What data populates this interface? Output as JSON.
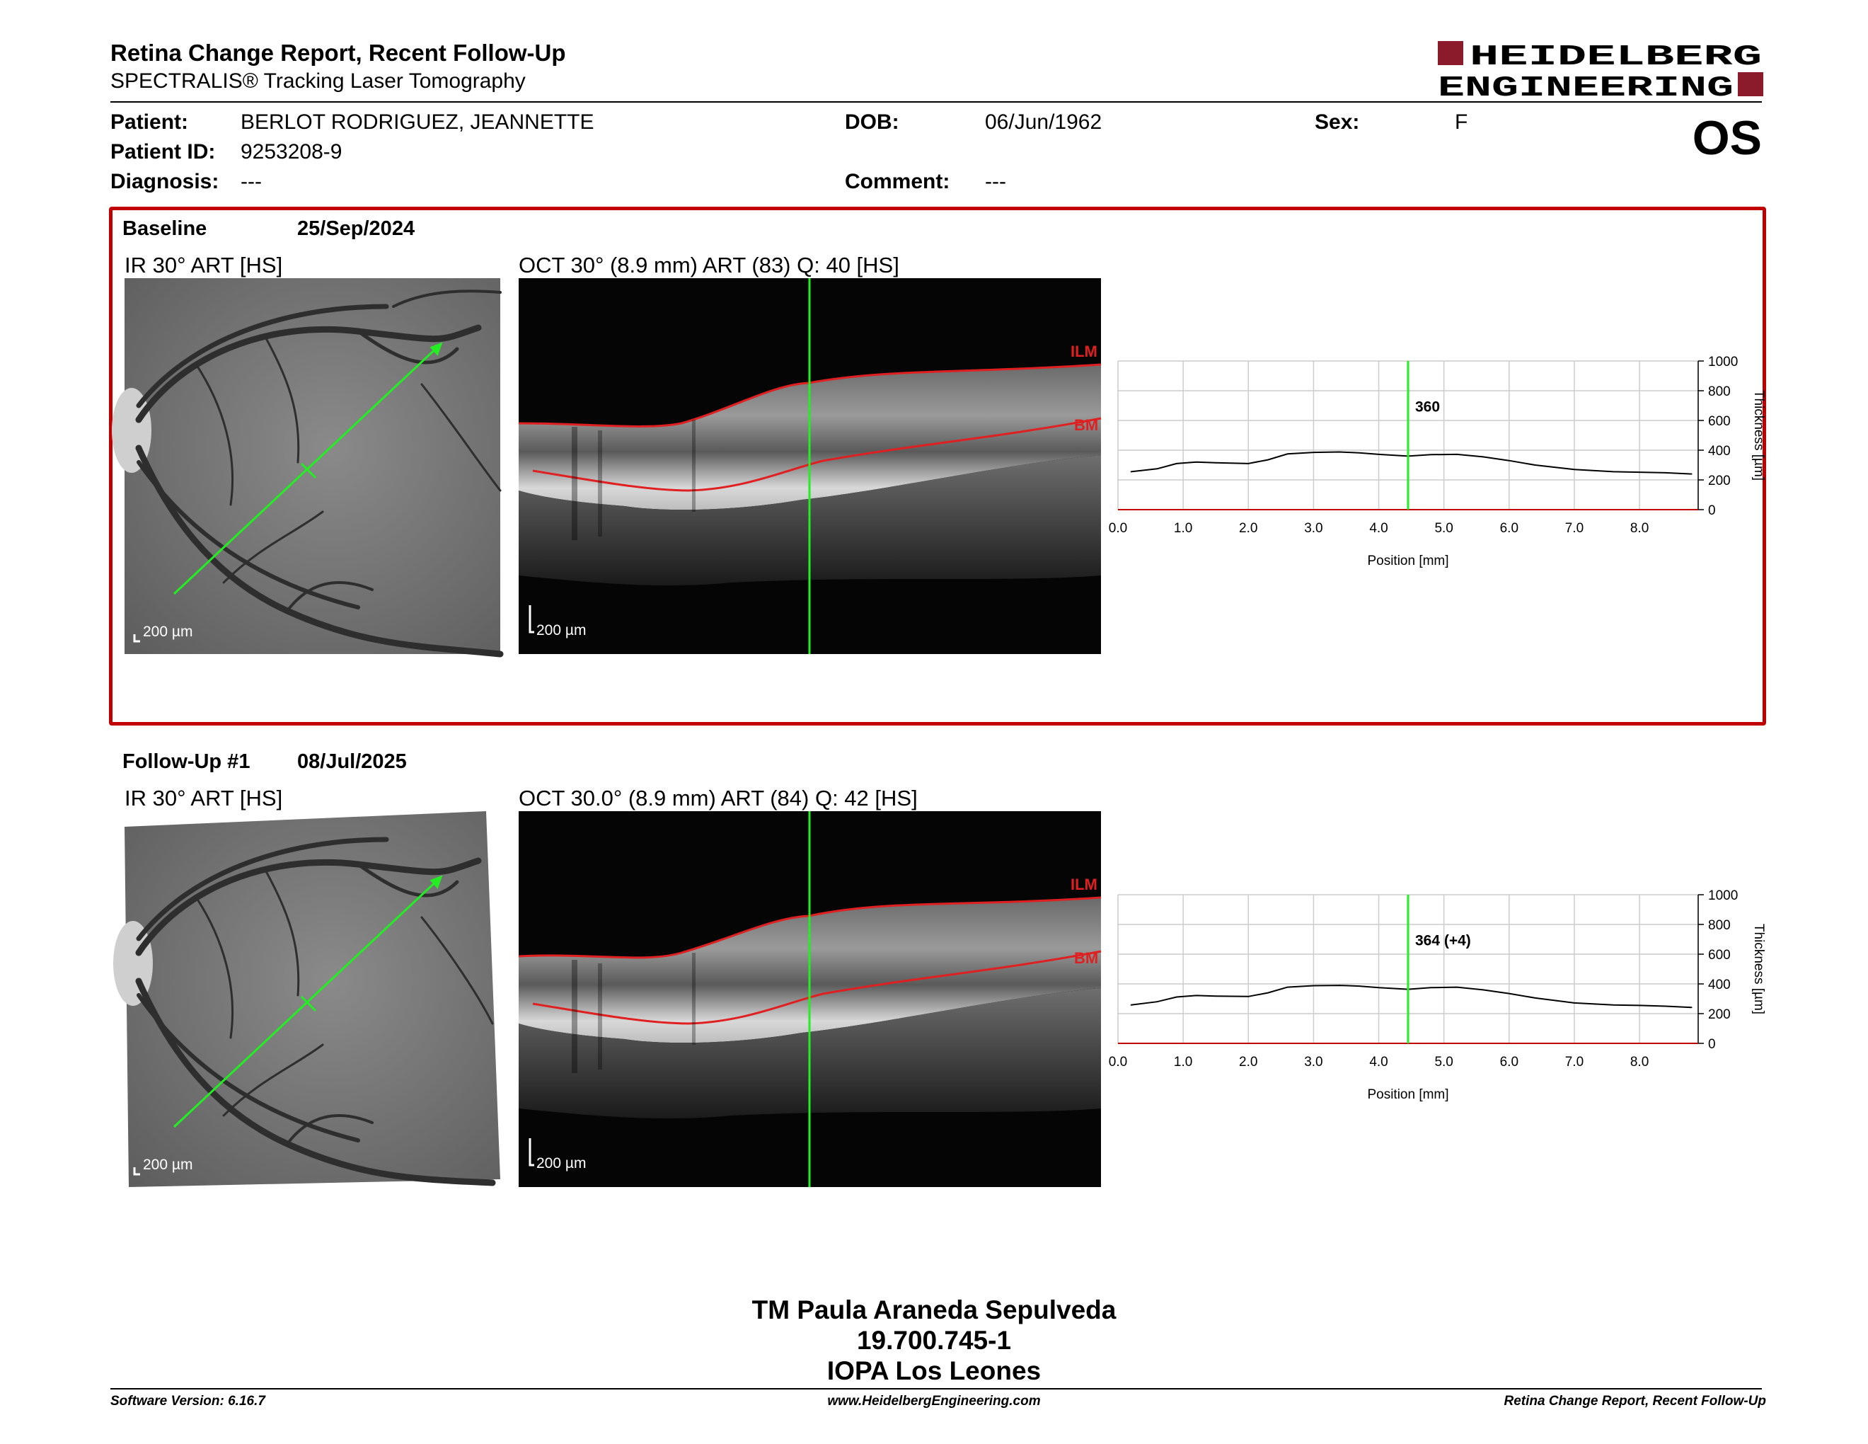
{
  "header": {
    "title": "Retina Change Report, Recent Follow-Up",
    "subtitle": "SPECTRALIS® Tracking Laser Tomography",
    "logo_line1": "HEIDELBERG",
    "logo_line2": "ENGINEERING",
    "eye": "OS"
  },
  "patient": {
    "patient_label": "Patient:",
    "patient_value": "BERLOT RODRIGUEZ, JEANNETTE",
    "id_label": "Patient ID:",
    "id_value": "9253208-9",
    "diagnosis_label": "Diagnosis:",
    "diagnosis_value": "---",
    "dob_label": "DOB:",
    "dob_value": "06/Jun/1962",
    "comment_label": "Comment:",
    "comment_value": "---",
    "sex_label": "Sex:",
    "sex_value": "F"
  },
  "baseline": {
    "label": "Baseline",
    "date": "25/Sep/2024",
    "ir_title": "IR 30° ART [HS]",
    "oct_title": "OCT 30° (8.9 mm) ART (83) Q: 40 [HS]",
    "scale": "200 µm",
    "ilm": "ILM",
    "bm": "BM",
    "thickness_label": "360"
  },
  "followup": {
    "label": "Follow-Up #1",
    "date": "08/Jul/2025",
    "ir_title": "IR 30° ART [HS]",
    "oct_title": "OCT 30.0° (8.9 mm) ART (84) Q: 42 [HS]",
    "scale": "200 µm",
    "ilm": "ILM",
    "bm": "BM",
    "thickness_label": "364 (+4)"
  },
  "chart_data": [
    {
      "type": "line",
      "xlabel": "Position [mm]",
      "ylabel": "Thickness [µm]",
      "xlim": [
        0,
        8.9
      ],
      "ylim": [
        0,
        1000
      ],
      "xticks": [
        "0.0",
        "1.0",
        "2.0",
        "3.0",
        "4.0",
        "5.0",
        "6.0",
        "7.0",
        "8.0"
      ],
      "yticks": [
        "0",
        "200",
        "400",
        "600",
        "800",
        "1000"
      ],
      "cursor_x": 4.45,
      "x": [
        0.2,
        0.6,
        0.9,
        1.2,
        1.5,
        2.0,
        2.3,
        2.6,
        3.0,
        3.4,
        3.7,
        4.0,
        4.45,
        4.8,
        5.2,
        5.6,
        6.0,
        6.4,
        7.0,
        7.6,
        8.0,
        8.4,
        8.8
      ],
      "y": [
        255,
        275,
        310,
        320,
        315,
        310,
        335,
        375,
        385,
        388,
        382,
        372,
        360,
        370,
        372,
        355,
        330,
        300,
        270,
        255,
        252,
        248,
        240
      ]
    },
    {
      "type": "line",
      "xlabel": "Position [mm]",
      "ylabel": "Thickness [µm]",
      "xlim": [
        0,
        8.9
      ],
      "ylim": [
        0,
        1000
      ],
      "xticks": [
        "0.0",
        "1.0",
        "2.0",
        "3.0",
        "4.0",
        "5.0",
        "6.0",
        "7.0",
        "8.0"
      ],
      "yticks": [
        "0",
        "200",
        "400",
        "600",
        "800",
        "1000"
      ],
      "cursor_x": 4.45,
      "x": [
        0.2,
        0.6,
        0.9,
        1.2,
        1.5,
        2.0,
        2.3,
        2.6,
        3.0,
        3.4,
        3.7,
        4.0,
        4.45,
        4.8,
        5.2,
        5.6,
        6.0,
        6.4,
        7.0,
        7.6,
        8.0,
        8.4,
        8.8
      ],
      "y": [
        258,
        280,
        312,
        322,
        318,
        315,
        340,
        378,
        388,
        390,
        385,
        375,
        364,
        375,
        378,
        360,
        335,
        305,
        272,
        258,
        255,
        250,
        242
      ]
    }
  ],
  "signature": {
    "line1": "TM Paula Araneda Sepulveda",
    "line2": "19.700.745-1",
    "line3": "IOPA Los Leones"
  },
  "footer": {
    "left": "Software Version: 6.16.7",
    "center": "www.HeidelbergEngineering.com",
    "right": "Retina Change Report, Recent Follow-Up"
  },
  "colors": {
    "frame_red": "#c00000",
    "logo_red": "#8b1a2b",
    "scan_green": "#22ee22",
    "layer_red": "#e02020"
  }
}
